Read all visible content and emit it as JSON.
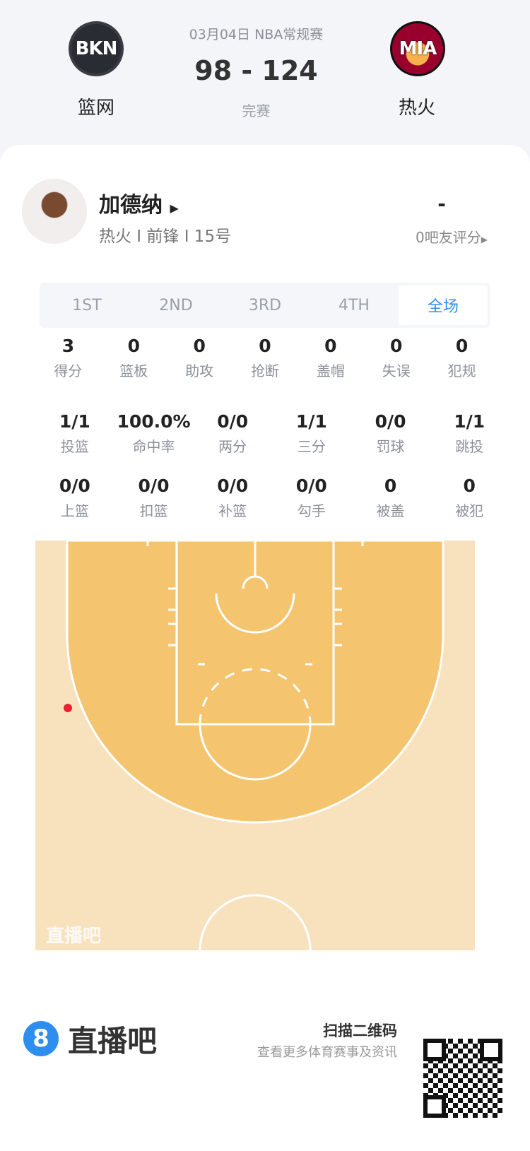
{
  "header": {
    "date_league": "03月04日 NBA常规赛",
    "score": "98 - 124",
    "status": "完赛",
    "home": {
      "abbr": "BKN",
      "name": "篮网"
    },
    "away": {
      "abbr": "MIA",
      "name": "热火"
    }
  },
  "player": {
    "name": "加德纳",
    "meta": "热火 I 前锋 I 15号",
    "rating": "-",
    "rating_label": "0吧友评分"
  },
  "tabs": [
    {
      "label": "1ST"
    },
    {
      "label": "2ND"
    },
    {
      "label": "3RD"
    },
    {
      "label": "4TH"
    },
    {
      "label": "全场",
      "active": true
    }
  ],
  "stats_rows": [
    [
      {
        "v": "3",
        "l": "得分"
      },
      {
        "v": "0",
        "l": "篮板"
      },
      {
        "v": "0",
        "l": "助攻"
      },
      {
        "v": "0",
        "l": "抢断"
      },
      {
        "v": "0",
        "l": "盖帽"
      },
      {
        "v": "0",
        "l": "失误"
      },
      {
        "v": "0",
        "l": "犯规"
      }
    ],
    [
      {
        "v": "1/1",
        "l": "投篮"
      },
      {
        "v": "100.0%",
        "l": "命中率"
      },
      {
        "v": "0/0",
        "l": "两分"
      },
      {
        "v": "1/1",
        "l": "三分"
      },
      {
        "v": "0/0",
        "l": "罚球"
      },
      {
        "v": "1/1",
        "l": "跳投"
      }
    ],
    [
      {
        "v": "0/0",
        "l": "上篮"
      },
      {
        "v": "0/0",
        "l": "扣篮"
      },
      {
        "v": "0/0",
        "l": "补篮"
      },
      {
        "v": "0/0",
        "l": "勾手"
      },
      {
        "v": "0",
        "l": "被盖"
      },
      {
        "v": "0",
        "l": "被犯"
      }
    ]
  ],
  "court": {
    "watermark": "直播吧",
    "shots": [
      {
        "made": true,
        "type": "三分",
        "color": "#e8232f"
      }
    ]
  },
  "footer": {
    "brand": "直播吧",
    "brand_mark": "8",
    "qr_title": "扫描二维码",
    "qr_sub": "查看更多体育赛事及资讯"
  },
  "colors": {
    "accent": "#2d8ef0",
    "court_inner": "#f5c46f",
    "court_outer": "#f8e2be"
  }
}
